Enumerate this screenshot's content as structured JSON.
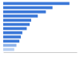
{
  "chart_data": {
    "type": "bar",
    "orientation": "horizontal",
    "categories": [
      null,
      null,
      null,
      null,
      null,
      null,
      null,
      null,
      null,
      null,
      null,
      null
    ],
    "values": [
      90,
      67,
      58,
      47,
      38,
      36,
      32,
      26,
      24,
      22,
      18,
      15
    ],
    "colors": [
      "#3b78d8",
      "#3b78d8",
      "#3b78d8",
      "#3b78d8",
      "#3b78d8",
      "#3b78d8",
      "#3b78d8",
      "#3b78d8",
      "#3b78d8",
      "#3b78d8",
      "#8fb3ea",
      "#b9d0f2"
    ],
    "xlim": [
      0,
      100
    ],
    "grid": false,
    "tick_labels": false
  }
}
